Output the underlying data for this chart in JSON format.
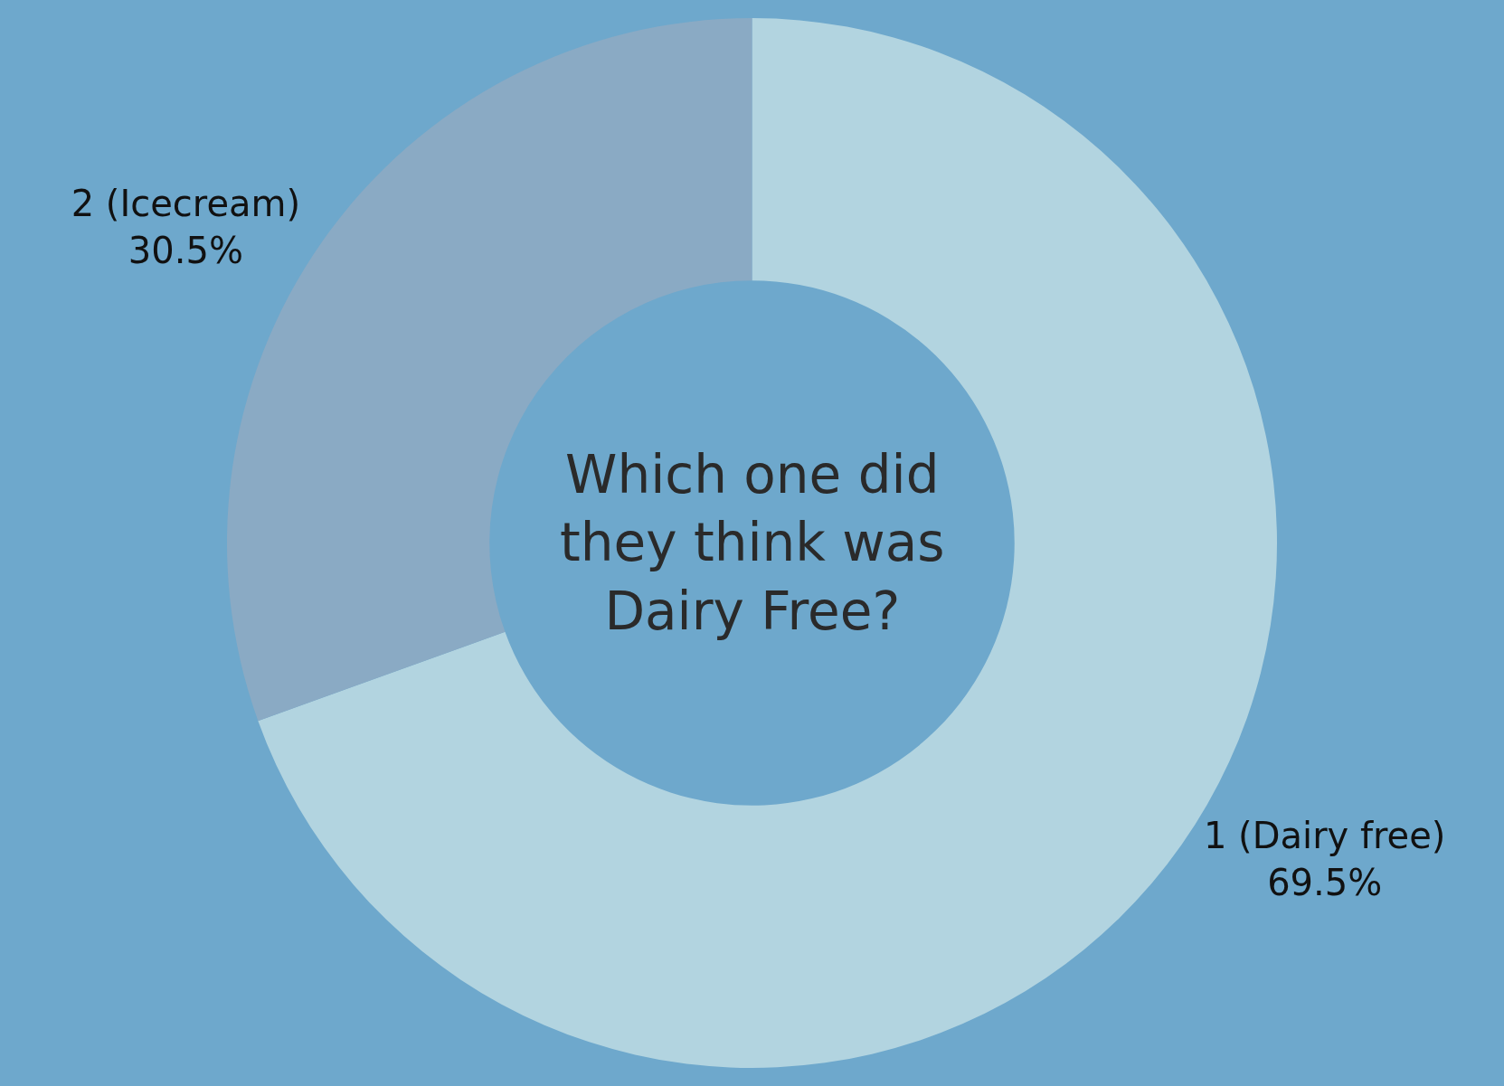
{
  "chart_data": {
    "type": "donut",
    "title": "Which one did they think was Dairy Free?",
    "categories": [
      "1 (Dairy free)",
      "2 (Icecream)"
    ],
    "values": [
      69.5,
      30.5
    ],
    "value_labels": [
      "69.5%",
      "30.5%"
    ],
    "colors": [
      "#b2d4e0",
      "#8aaac4"
    ],
    "legend": false
  }
}
